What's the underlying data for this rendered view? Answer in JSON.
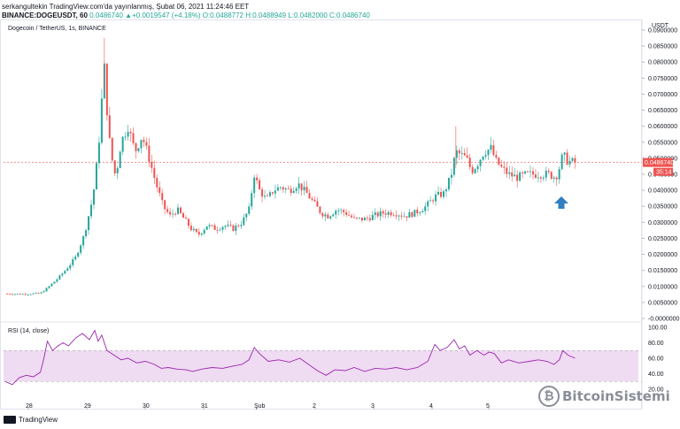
{
  "header": {
    "line1": "serkangultekin TradingView.com'da yayınlanmış, Şubat 06, 2021 11:24:46 EET",
    "symbol": "BINANCE:DOGEUSDT, 60",
    "change": "0.0486740 ▲+0.0019547 (+4.18%)",
    "ohlc_o": "O:0.0488772",
    "ohlc_h": "H:0.0488949",
    "ohlc_l": "L:0.0482000",
    "ohlc_c": "C:0.0486740"
  },
  "pane": {
    "title": "Dogecoin / TetherUS, 1s, BINANCE",
    "currency": "USDT",
    "price_label": "0.0486740",
    "countdown_label": "35:14",
    "rsi_label": "RSI (14, close)"
  },
  "footer": {
    "brand": "TradingView"
  },
  "watermark": {
    "text": "BitcoinSistemi",
    "coin": "₿"
  },
  "colors": {
    "up": "#26a69a",
    "down": "#ef5350",
    "rsi": "#9c27b0",
    "rsi_band": "#e1bee7",
    "arrow": "#2f7fc1"
  },
  "chart_data": [
    {
      "type": "candlestick",
      "title": "Dogecoin / TetherUS, 1s, BINANCE",
      "ylim": [
        0.0,
        0.09
      ],
      "y_ticks": [
        "0.0900000",
        "0.0850000",
        "0.0800000",
        "0.0750000",
        "0.0700000",
        "0.0650000",
        "0.0600000",
        "0.0550000",
        "0.0500000",
        "0.0450000",
        "0.0400000",
        "0.0350000",
        "0.0300000",
        "0.0250000",
        "0.0200000",
        "0.0150000",
        "0.0100000",
        "0.0050000",
        "-0.0000000"
      ],
      "x_ticks": [
        "28",
        "29",
        "30",
        "31",
        "Şub",
        "2",
        "3",
        "4",
        "5"
      ],
      "close_path": [
        [
          0,
          0.0077
        ],
        [
          20,
          0.0076
        ],
        [
          40,
          0.0078
        ],
        [
          48,
          0.0095
        ],
        [
          60,
          0.0125
        ],
        [
          70,
          0.0155
        ],
        [
          80,
          0.019
        ],
        [
          90,
          0.026
        ],
        [
          100,
          0.038
        ],
        [
          106,
          0.052
        ],
        [
          110,
          0.068
        ],
        [
          113,
          0.078
        ],
        [
          116,
          0.065
        ],
        [
          120,
          0.052
        ],
        [
          126,
          0.044
        ],
        [
          132,
          0.055
        ],
        [
          140,
          0.06
        ],
        [
          148,
          0.052
        ],
        [
          156,
          0.057
        ],
        [
          164,
          0.05
        ],
        [
          172,
          0.042
        ],
        [
          180,
          0.035
        ],
        [
          188,
          0.032
        ],
        [
          196,
          0.034
        ],
        [
          204,
          0.031
        ],
        [
          212,
          0.028
        ],
        [
          220,
          0.026
        ],
        [
          230,
          0.029
        ],
        [
          240,
          0.028
        ],
        [
          250,
          0.029
        ],
        [
          260,
          0.028
        ],
        [
          270,
          0.03
        ],
        [
          278,
          0.034
        ],
        [
          284,
          0.045
        ],
        [
          290,
          0.04
        ],
        [
          298,
          0.037
        ],
        [
          306,
          0.04
        ],
        [
          314,
          0.041
        ],
        [
          324,
          0.04
        ],
        [
          334,
          0.042
        ],
        [
          344,
          0.039
        ],
        [
          352,
          0.036
        ],
        [
          360,
          0.033
        ],
        [
          368,
          0.032
        ],
        [
          378,
          0.034
        ],
        [
          388,
          0.033
        ],
        [
          398,
          0.031
        ],
        [
          410,
          0.031
        ],
        [
          420,
          0.032
        ],
        [
          432,
          0.033
        ],
        [
          444,
          0.033
        ],
        [
          456,
          0.032
        ],
        [
          468,
          0.033
        ],
        [
          480,
          0.035
        ],
        [
          490,
          0.038
        ],
        [
          500,
          0.039
        ],
        [
          508,
          0.044
        ],
        [
          514,
          0.052
        ],
        [
          520,
          0.051
        ],
        [
          526,
          0.05
        ],
        [
          532,
          0.046
        ],
        [
          538,
          0.048
        ],
        [
          546,
          0.052
        ],
        [
          554,
          0.053
        ],
        [
          560,
          0.049
        ],
        [
          566,
          0.047
        ],
        [
          574,
          0.045
        ],
        [
          584,
          0.044
        ],
        [
          596,
          0.045
        ],
        [
          608,
          0.045
        ],
        [
          620,
          0.045
        ],
        [
          628,
          0.044
        ],
        [
          632,
          0.047
        ],
        [
          636,
          0.051
        ],
        [
          642,
          0.049
        ],
        [
          650,
          0.0487
        ]
      ],
      "last_price": 0.048674,
      "annotation": "up-arrow"
    },
    {
      "type": "line",
      "title": "RSI (14, close)",
      "ylim": [
        20,
        100
      ],
      "y_ticks": [
        "100.00",
        "80.00",
        "60.00",
        "40.00",
        "20.00"
      ],
      "band": [
        30,
        70
      ],
      "series": [
        {
          "values": [
            [
              0,
              30
            ],
            [
              8,
              26
            ],
            [
              16,
              35
            ],
            [
              24,
              38
            ],
            [
              32,
              36
            ],
            [
              40,
              42
            ],
            [
              44,
              60
            ],
            [
              48,
              82
            ],
            [
              54,
              70
            ],
            [
              60,
              76
            ],
            [
              66,
              80
            ],
            [
              72,
              76
            ],
            [
              80,
              86
            ],
            [
              88,
              92
            ],
            [
              96,
              84
            ],
            [
              102,
              96
            ],
            [
              106,
              82
            ],
            [
              110,
              90
            ],
            [
              116,
              70
            ],
            [
              124,
              64
            ],
            [
              132,
              58
            ],
            [
              140,
              60
            ],
            [
              150,
              54
            ],
            [
              160,
              56
            ],
            [
              170,
              52
            ],
            [
              178,
              47
            ],
            [
              186,
              48
            ],
            [
              196,
              46
            ],
            [
              206,
              45
            ],
            [
              214,
              43
            ],
            [
              224,
              46
            ],
            [
              236,
              48
            ],
            [
              248,
              47
            ],
            [
              260,
              50
            ],
            [
              270,
              52
            ],
            [
              278,
              58
            ],
            [
              284,
              74
            ],
            [
              290,
              66
            ],
            [
              300,
              56
            ],
            [
              312,
              58
            ],
            [
              324,
              55
            ],
            [
              336,
              60
            ],
            [
              346,
              52
            ],
            [
              356,
              44
            ],
            [
              366,
              38
            ],
            [
              376,
              45
            ],
            [
              388,
              44
            ],
            [
              398,
              48
            ],
            [
              410,
              43
            ],
            [
              422,
              47
            ],
            [
              434,
              46
            ],
            [
              446,
              48
            ],
            [
              458,
              45
            ],
            [
              470,
              48
            ],
            [
              482,
              56
            ],
            [
              490,
              78
            ],
            [
              496,
              70
            ],
            [
              504,
              74
            ],
            [
              512,
              84
            ],
            [
              518,
              72
            ],
            [
              524,
              76
            ],
            [
              530,
              64
            ],
            [
              538,
              70
            ],
            [
              546,
              64
            ],
            [
              552,
              68
            ],
            [
              558,
              66
            ],
            [
              566,
              54
            ],
            [
              574,
              58
            ],
            [
              586,
              54
            ],
            [
              598,
              56
            ],
            [
              608,
              58
            ],
            [
              618,
              56
            ],
            [
              626,
              52
            ],
            [
              632,
              58
            ],
            [
              636,
              70
            ],
            [
              642,
              64
            ],
            [
              650,
              60
            ]
          ]
        }
      ]
    }
  ]
}
